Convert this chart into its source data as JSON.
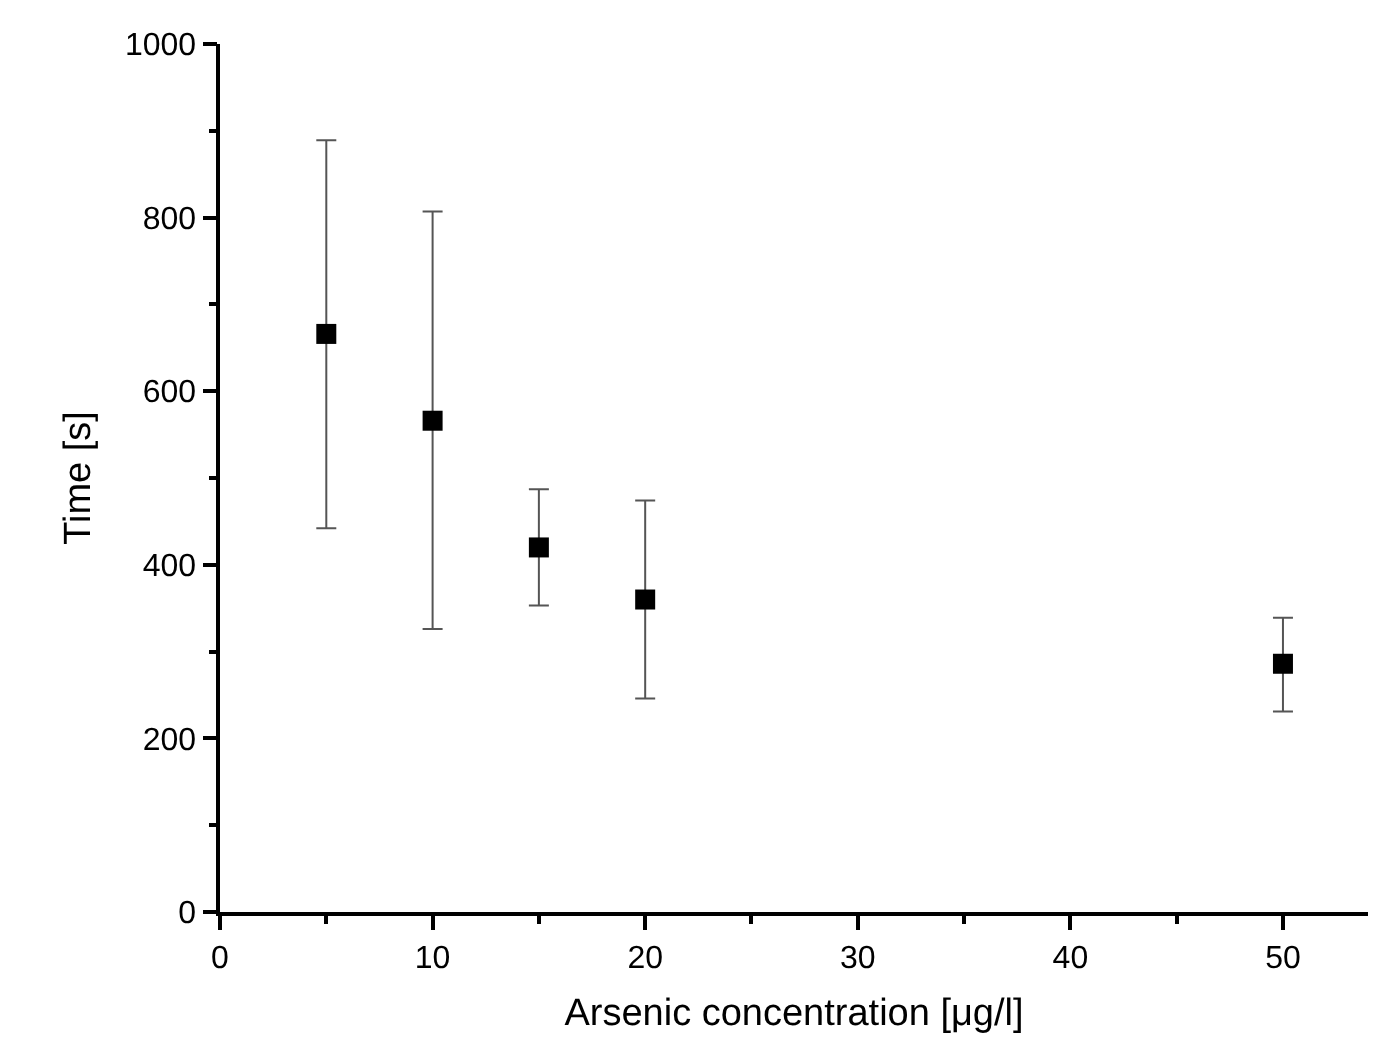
{
  "chart_data": {
    "type": "scatter",
    "xlabel": "Arsenic concentration [μg/l]",
    "ylabel": "Time [s]",
    "x": [
      5,
      10,
      15,
      20,
      50
    ],
    "values": [
      666,
      566,
      420,
      360,
      286
    ],
    "errors": [
      [
        442,
        889
      ],
      [
        326,
        807
      ],
      [
        353,
        487
      ],
      [
        246,
        474
      ],
      [
        231,
        339
      ]
    ],
    "color": "#000000",
    "marker": "square",
    "grid": false,
    "xlim": [
      0,
      54
    ],
    "xticks": [
      0,
      10,
      20,
      30,
      40,
      50
    ],
    "ylim": [
      0,
      1000
    ],
    "yticks": [
      0,
      200,
      400,
      600,
      800,
      1000
    ]
  }
}
